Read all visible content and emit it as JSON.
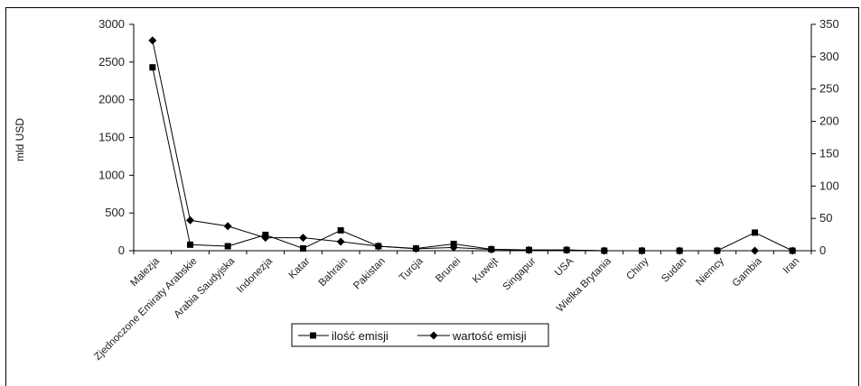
{
  "chart_data": {
    "type": "line",
    "ylabel": "mld USD",
    "categories": [
      "Malezja",
      "Zjednoczone Emiraty Arabskie",
      "Arabia Saudyjska",
      "Indonezja",
      "Katar",
      "Bahrain",
      "Pakistan",
      "Turcja",
      "Brunei",
      "Kuwejt",
      "Singapur",
      "USA",
      "Wielka Brytania",
      "Chiny",
      "Sudan",
      "Niemcy",
      "Gambia",
      "Iran"
    ],
    "yticks_left": [
      0,
      500,
      1000,
      1500,
      2000,
      2500,
      3000
    ],
    "yticks_right": [
      0,
      50,
      100,
      150,
      200,
      250,
      300,
      350
    ],
    "ylim_left": [
      0,
      3000
    ],
    "ylim_right": [
      0,
      350
    ],
    "series": [
      {
        "name": "ilość emisji",
        "axis": "left",
        "marker": "square",
        "values": [
          2430,
          80,
          60,
          210,
          30,
          270,
          60,
          30,
          90,
          20,
          10,
          10,
          0,
          0,
          0,
          0,
          240,
          0
        ]
      },
      {
        "name": "wartość emisji",
        "axis": "right",
        "marker": "diamond",
        "values": [
          325,
          47,
          38,
          20,
          20,
          14,
          7,
          3,
          5,
          2,
          1,
          1,
          0,
          0,
          0,
          0,
          0,
          0
        ]
      }
    ],
    "legend": "bottom-center",
    "grid": false
  }
}
